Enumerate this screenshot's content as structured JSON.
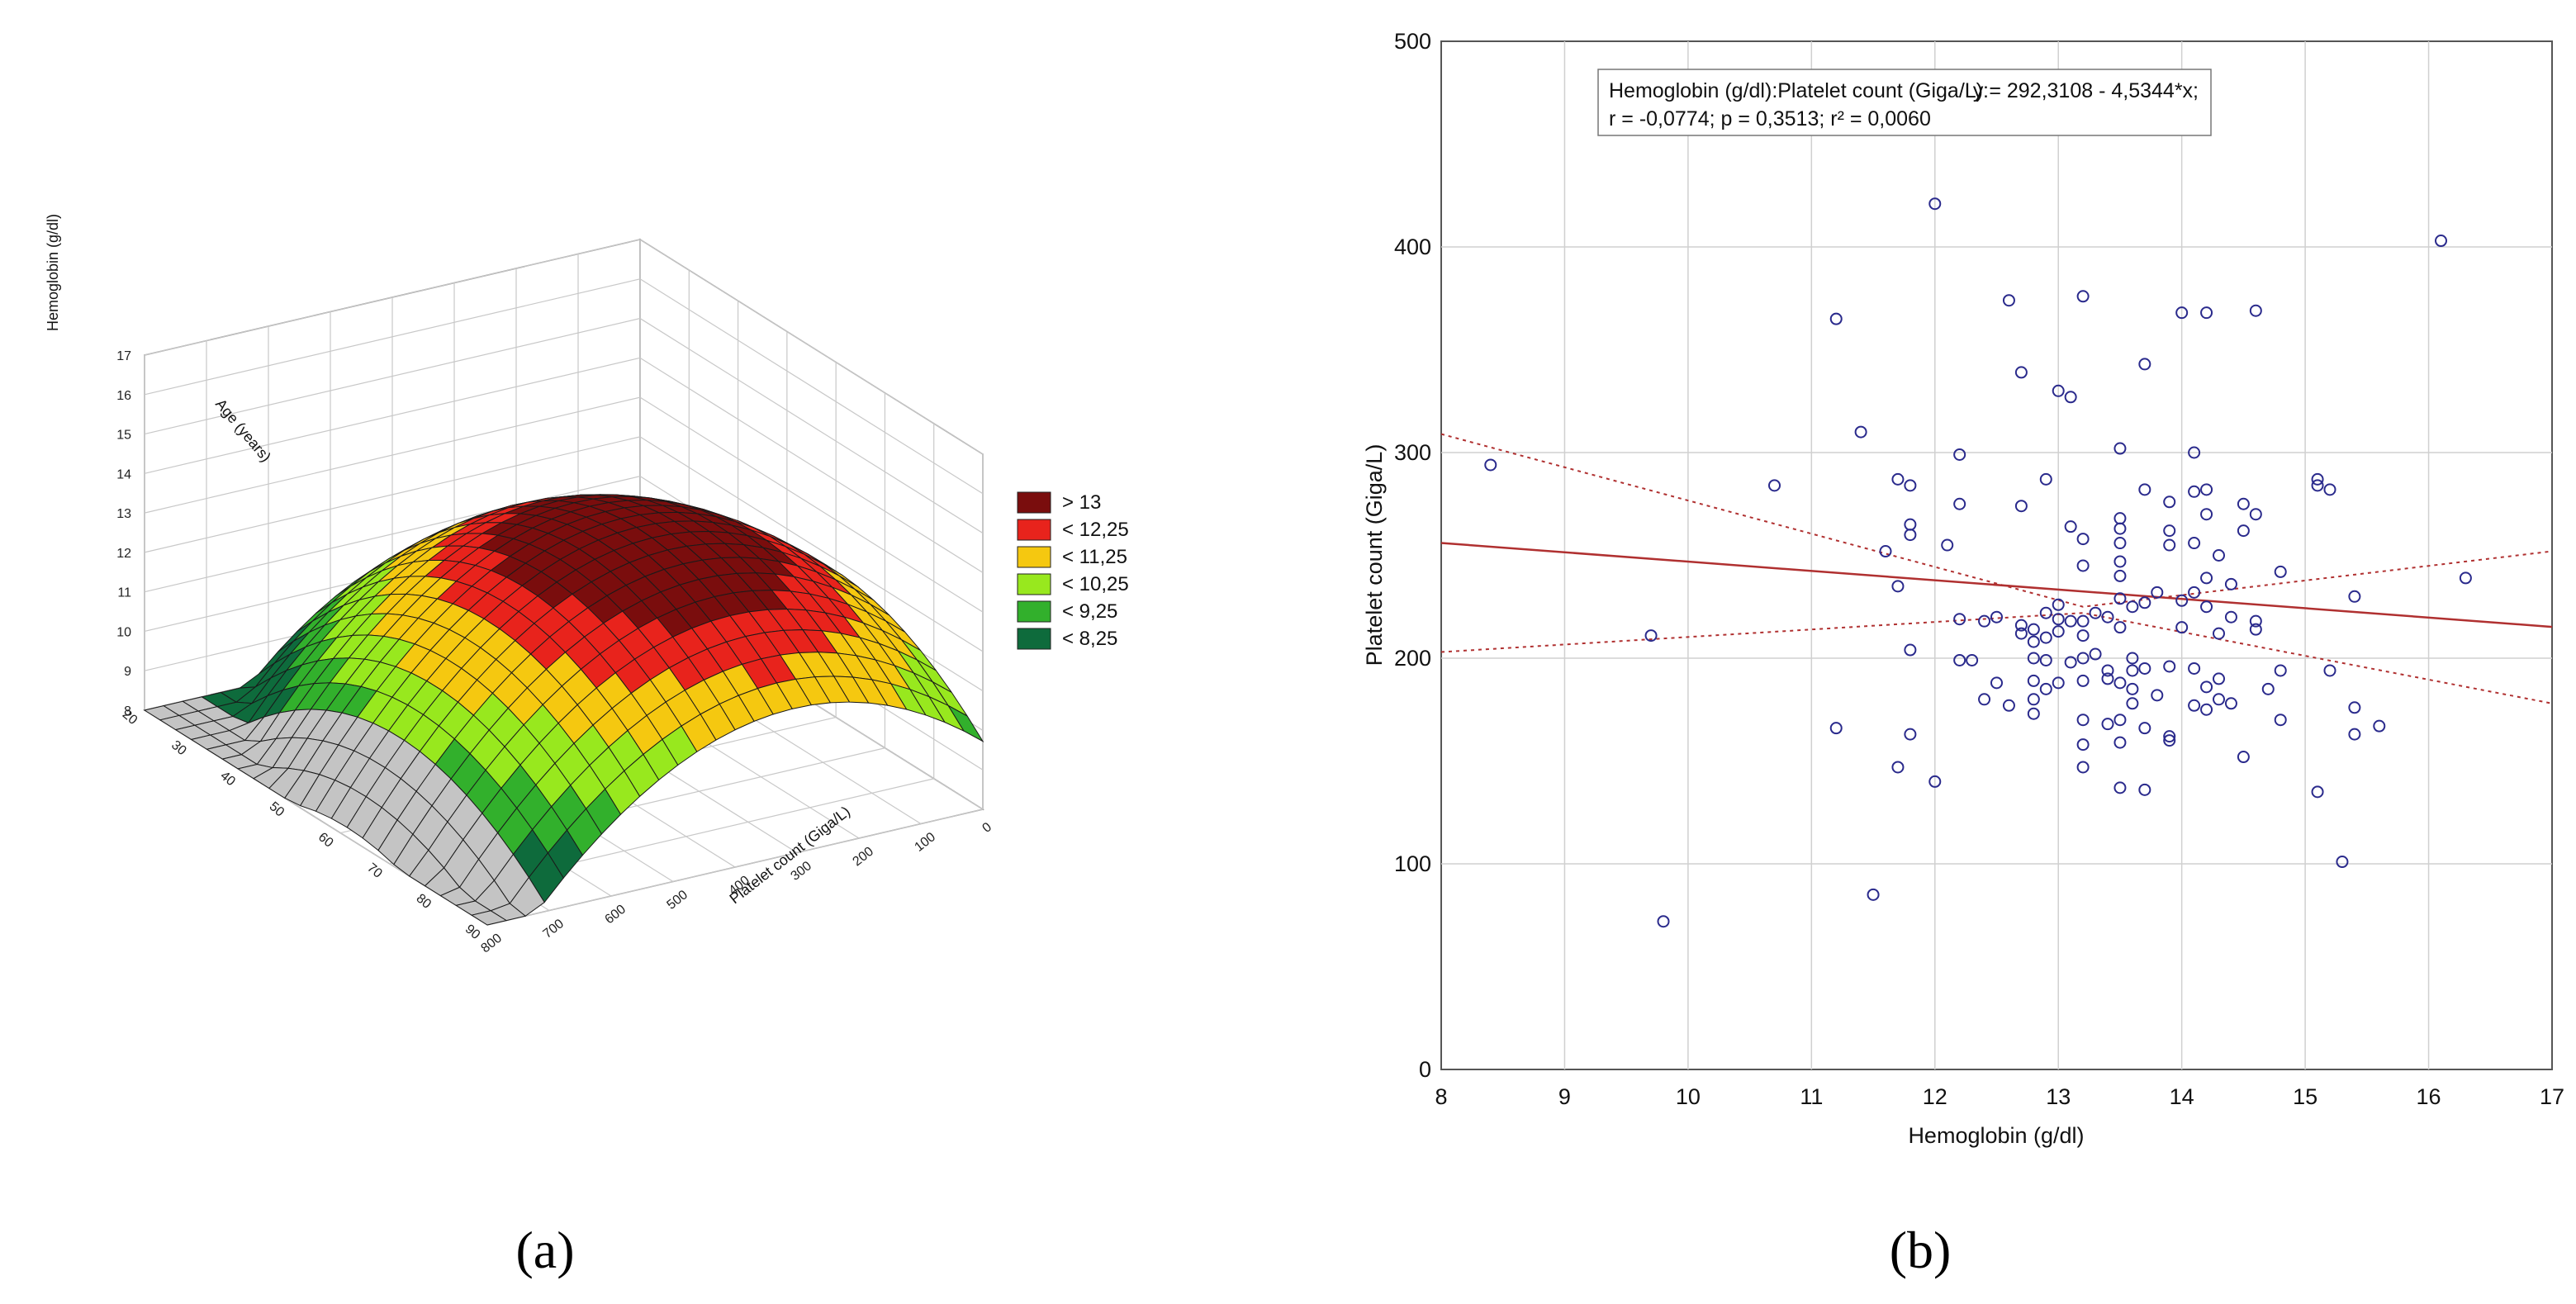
{
  "chart_data": [
    {
      "type": "surface3d",
      "panel_label": "(a)",
      "zlabel": "Hemoglobin (g/dl)",
      "xlabel": "Platelet count (Giga/L)",
      "ylabel": "Age (years)",
      "z_ticks": [
        "17",
        "16",
        "15",
        "14",
        "13",
        "12",
        "11",
        "10",
        "9",
        "8"
      ],
      "x_ticks": [
        "0",
        "100",
        "200",
        "300",
        "400",
        "500",
        "600",
        "700",
        "800"
      ],
      "y_ticks": [
        "20",
        "30",
        "40",
        "50",
        "60",
        "70",
        "80",
        "90"
      ],
      "zlim": [
        8,
        17
      ],
      "xlim": [
        0,
        800
      ],
      "ylim": [
        20,
        90
      ],
      "legend": {
        "position": "right",
        "entries": [
          {
            "label": "> 13",
            "color": "#7a0d0d"
          },
          {
            "label": "< 12,25",
            "color": "#e8231c"
          },
          {
            "label": "< 11,25",
            "color": "#f5c810"
          },
          {
            "label": "< 10,25",
            "color": "#98e81e"
          },
          {
            "label": "< 9,25",
            "color": "#32b02c"
          },
          {
            "label": "< 8,25",
            "color": "#0e6b3c"
          }
        ]
      }
    },
    {
      "type": "scatter",
      "panel_label": "(b)",
      "xlabel": "Hemoglobin (g/dl)",
      "ylabel": "Platelet count (Giga/L)",
      "xlim": [
        8,
        17
      ],
      "ylim": [
        0,
        500
      ],
      "x_ticks": [
        8,
        9,
        10,
        11,
        12,
        13,
        14,
        15,
        16,
        17
      ],
      "y_ticks": [
        0,
        100,
        200,
        300,
        400,
        500
      ],
      "grid": true,
      "annotation": {
        "line1_left": "Hemoglobin (g/dl):Platelet count (Giga/L):",
        "line1_right": "y = 292,3108 - 4,5344*x;",
        "line2": "r = -0,0774; p = 0,3513; r² = 0,0060"
      },
      "regression": {
        "intercept": 292.3108,
        "slope": -4.5344,
        "color": "#b03030"
      },
      "confidence_band": {
        "lower": [
          [
            8,
            203
          ],
          [
            13.2,
            222
          ],
          [
            17,
            178
          ]
        ],
        "upper": [
          [
            8,
            309
          ],
          [
            13.2,
            225
          ],
          [
            17,
            252
          ]
        ],
        "color": "#b03030"
      },
      "marker_color": "#2a2a8c",
      "points": [
        [
          8.4,
          294
        ],
        [
          9.7,
          211
        ],
        [
          9.8,
          72
        ],
        [
          10.7,
          284
        ],
        [
          11.2,
          365
        ],
        [
          11.2,
          166
        ],
        [
          11.4,
          310
        ],
        [
          11.5,
          85
        ],
        [
          11.6,
          252
        ],
        [
          11.7,
          287
        ],
        [
          11.7,
          235
        ],
        [
          11.7,
          147
        ],
        [
          11.8,
          284
        ],
        [
          11.8,
          265
        ],
        [
          11.8,
          260
        ],
        [
          11.8,
          204
        ],
        [
          11.8,
          163
        ],
        [
          12.0,
          421
        ],
        [
          12.0,
          140
        ],
        [
          12.1,
          255
        ],
        [
          12.2,
          299
        ],
        [
          12.2,
          275
        ],
        [
          12.2,
          219
        ],
        [
          12.2,
          199
        ],
        [
          12.3,
          199
        ],
        [
          12.4,
          180
        ],
        [
          12.4,
          218
        ],
        [
          12.5,
          220
        ],
        [
          12.5,
          188
        ],
        [
          12.6,
          374
        ],
        [
          12.6,
          177
        ],
        [
          12.7,
          339
        ],
        [
          12.7,
          274
        ],
        [
          12.7,
          216
        ],
        [
          12.7,
          212
        ],
        [
          12.8,
          214
        ],
        [
          12.8,
          208
        ],
        [
          12.8,
          200
        ],
        [
          12.8,
          189
        ],
        [
          12.8,
          180
        ],
        [
          12.8,
          173
        ],
        [
          12.9,
          287
        ],
        [
          12.9,
          222
        ],
        [
          12.9,
          210
        ],
        [
          12.9,
          199
        ],
        [
          12.9,
          185
        ],
        [
          13.0,
          330
        ],
        [
          13.0,
          226
        ],
        [
          13.0,
          219
        ],
        [
          13.0,
          213
        ],
        [
          13.0,
          188
        ],
        [
          13.1,
          327
        ],
        [
          13.1,
          264
        ],
        [
          13.1,
          218
        ],
        [
          13.1,
          198
        ],
        [
          13.2,
          376
        ],
        [
          13.2,
          258
        ],
        [
          13.2,
          245
        ],
        [
          13.2,
          218
        ],
        [
          13.2,
          211
        ],
        [
          13.2,
          200
        ],
        [
          13.2,
          189
        ],
        [
          13.2,
          170
        ],
        [
          13.2,
          158
        ],
        [
          13.2,
          147
        ],
        [
          13.3,
          222
        ],
        [
          13.3,
          202
        ],
        [
          13.4,
          220
        ],
        [
          13.4,
          194
        ],
        [
          13.4,
          168
        ],
        [
          13.4,
          190
        ],
        [
          13.5,
          302
        ],
        [
          13.5,
          268
        ],
        [
          13.5,
          263
        ],
        [
          13.5,
          256
        ],
        [
          13.5,
          247
        ],
        [
          13.5,
          240
        ],
        [
          13.5,
          229
        ],
        [
          13.5,
          215
        ],
        [
          13.5,
          188
        ],
        [
          13.5,
          170
        ],
        [
          13.5,
          159
        ],
        [
          13.5,
          137
        ],
        [
          13.6,
          225
        ],
        [
          13.6,
          200
        ],
        [
          13.6,
          194
        ],
        [
          13.6,
          185
        ],
        [
          13.6,
          178
        ],
        [
          13.7,
          343
        ],
        [
          13.7,
          282
        ],
        [
          13.7,
          227
        ],
        [
          13.7,
          195
        ],
        [
          13.7,
          166
        ],
        [
          13.7,
          136
        ],
        [
          13.8,
          232
        ],
        [
          13.8,
          182
        ],
        [
          13.9,
          276
        ],
        [
          13.9,
          262
        ],
        [
          13.9,
          255
        ],
        [
          13.9,
          196
        ],
        [
          13.9,
          162
        ],
        [
          13.9,
          160
        ],
        [
          14.0,
          368
        ],
        [
          14.0,
          228
        ],
        [
          14.0,
          215
        ],
        [
          14.1,
          300
        ],
        [
          14.1,
          281
        ],
        [
          14.1,
          256
        ],
        [
          14.1,
          232
        ],
        [
          14.1,
          195
        ],
        [
          14.1,
          177
        ],
        [
          14.2,
          368
        ],
        [
          14.2,
          282
        ],
        [
          14.2,
          270
        ],
        [
          14.2,
          239
        ],
        [
          14.2,
          225
        ],
        [
          14.2,
          186
        ],
        [
          14.2,
          175
        ],
        [
          14.3,
          250
        ],
        [
          14.3,
          212
        ],
        [
          14.3,
          190
        ],
        [
          14.3,
          180
        ],
        [
          14.4,
          220
        ],
        [
          14.4,
          178
        ],
        [
          14.4,
          236
        ],
        [
          14.5,
          275
        ],
        [
          14.5,
          262
        ],
        [
          14.5,
          152
        ],
        [
          14.6,
          369
        ],
        [
          14.6,
          270
        ],
        [
          14.6,
          218
        ],
        [
          14.6,
          214
        ],
        [
          14.7,
          185
        ],
        [
          14.8,
          242
        ],
        [
          14.8,
          194
        ],
        [
          14.8,
          170
        ],
        [
          15.1,
          287
        ],
        [
          15.1,
          284
        ],
        [
          15.1,
          135
        ],
        [
          15.2,
          282
        ],
        [
          15.2,
          194
        ],
        [
          15.3,
          101
        ],
        [
          15.4,
          230
        ],
        [
          15.4,
          176
        ],
        [
          15.4,
          163
        ],
        [
          15.6,
          167
        ],
        [
          16.1,
          403
        ],
        [
          16.3,
          239
        ]
      ]
    }
  ]
}
